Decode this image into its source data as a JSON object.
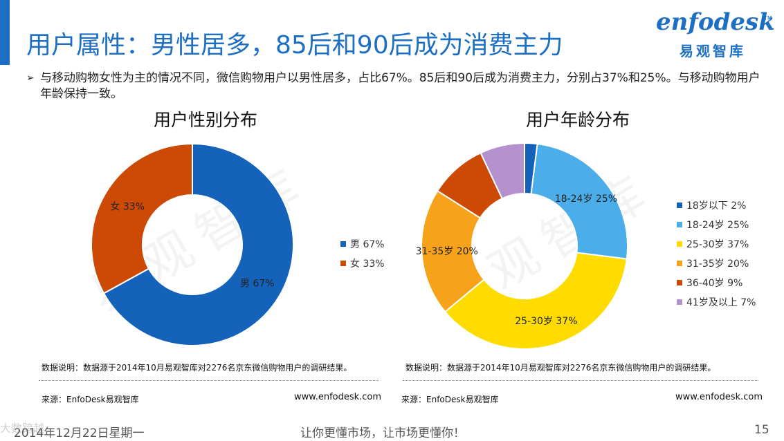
{
  "header": {
    "title": "用户属性：男性居多，85后和90后成为消费主力",
    "logo_word": "enfodesk",
    "logo_tm": "TM",
    "logo_cn": "易观智库"
  },
  "bullet": {
    "arrow": "➢",
    "text": "与移动购物女性为主的情况不同，微信购物用户以男性居多，占比67%。85后和90后成为消费主力，分别占37%和25%。与移动购物用户年龄保持一致。"
  },
  "watermark": "易观智库",
  "corner_mark": "大数跨越",
  "chart_data": [
    {
      "type": "pie",
      "title": "用户性别分布",
      "donut": true,
      "legend_position": "right",
      "series": [
        {
          "name": "男",
          "value": 67,
          "label": "男 67%",
          "color": "#1562bb"
        },
        {
          "name": "女",
          "value": 33,
          "label": "女 33%",
          "color": "#cc4a06"
        }
      ]
    },
    {
      "type": "pie",
      "title": "用户年龄分布",
      "donut": true,
      "legend_position": "right",
      "series": [
        {
          "name": "18岁以下",
          "value": 2,
          "label": "18岁以下 2%",
          "color": "#1562bb",
          "slice_label": ""
        },
        {
          "name": "18-24岁",
          "value": 25,
          "label": "18-24岁 25%",
          "color": "#4badea",
          "slice_label": "18-24岁 25%"
        },
        {
          "name": "25-30岁",
          "value": 37,
          "label": "25-30岁 37%",
          "color": "#ffdc00",
          "slice_label": "25-30岁 37%"
        },
        {
          "name": "31-35岁",
          "value": 20,
          "label": "31-35岁 20%",
          "color": "#f6a31b",
          "slice_label": "31-35岁 20%"
        },
        {
          "name": "36-40岁",
          "value": 9,
          "label": "36-40岁 9%",
          "color": "#cc4a06",
          "slice_label": ""
        },
        {
          "name": "41岁及以上",
          "value": 7,
          "label": "41岁及以上 7%",
          "color": "#b592ce",
          "slice_label": ""
        }
      ]
    }
  ],
  "notes": {
    "left": "数据说明：数据源于2014年10月易观智库对2276名京东微信购物用户的调研结果。",
    "right": "数据说明：数据源于2014年10月易观智库对2276名京东微信购物用户的调研结果。"
  },
  "sources": {
    "left": "来源：EnfoDesk易观智库",
    "right": "来源：EnfoDesk易观智库",
    "left_site": "www.enfodesk.com",
    "right_site": "www.enfodesk.com"
  },
  "footer": {
    "date": "2014年12月22日星期一",
    "slogan": "让你更懂市场，让市场更懂你！",
    "page": "15"
  }
}
